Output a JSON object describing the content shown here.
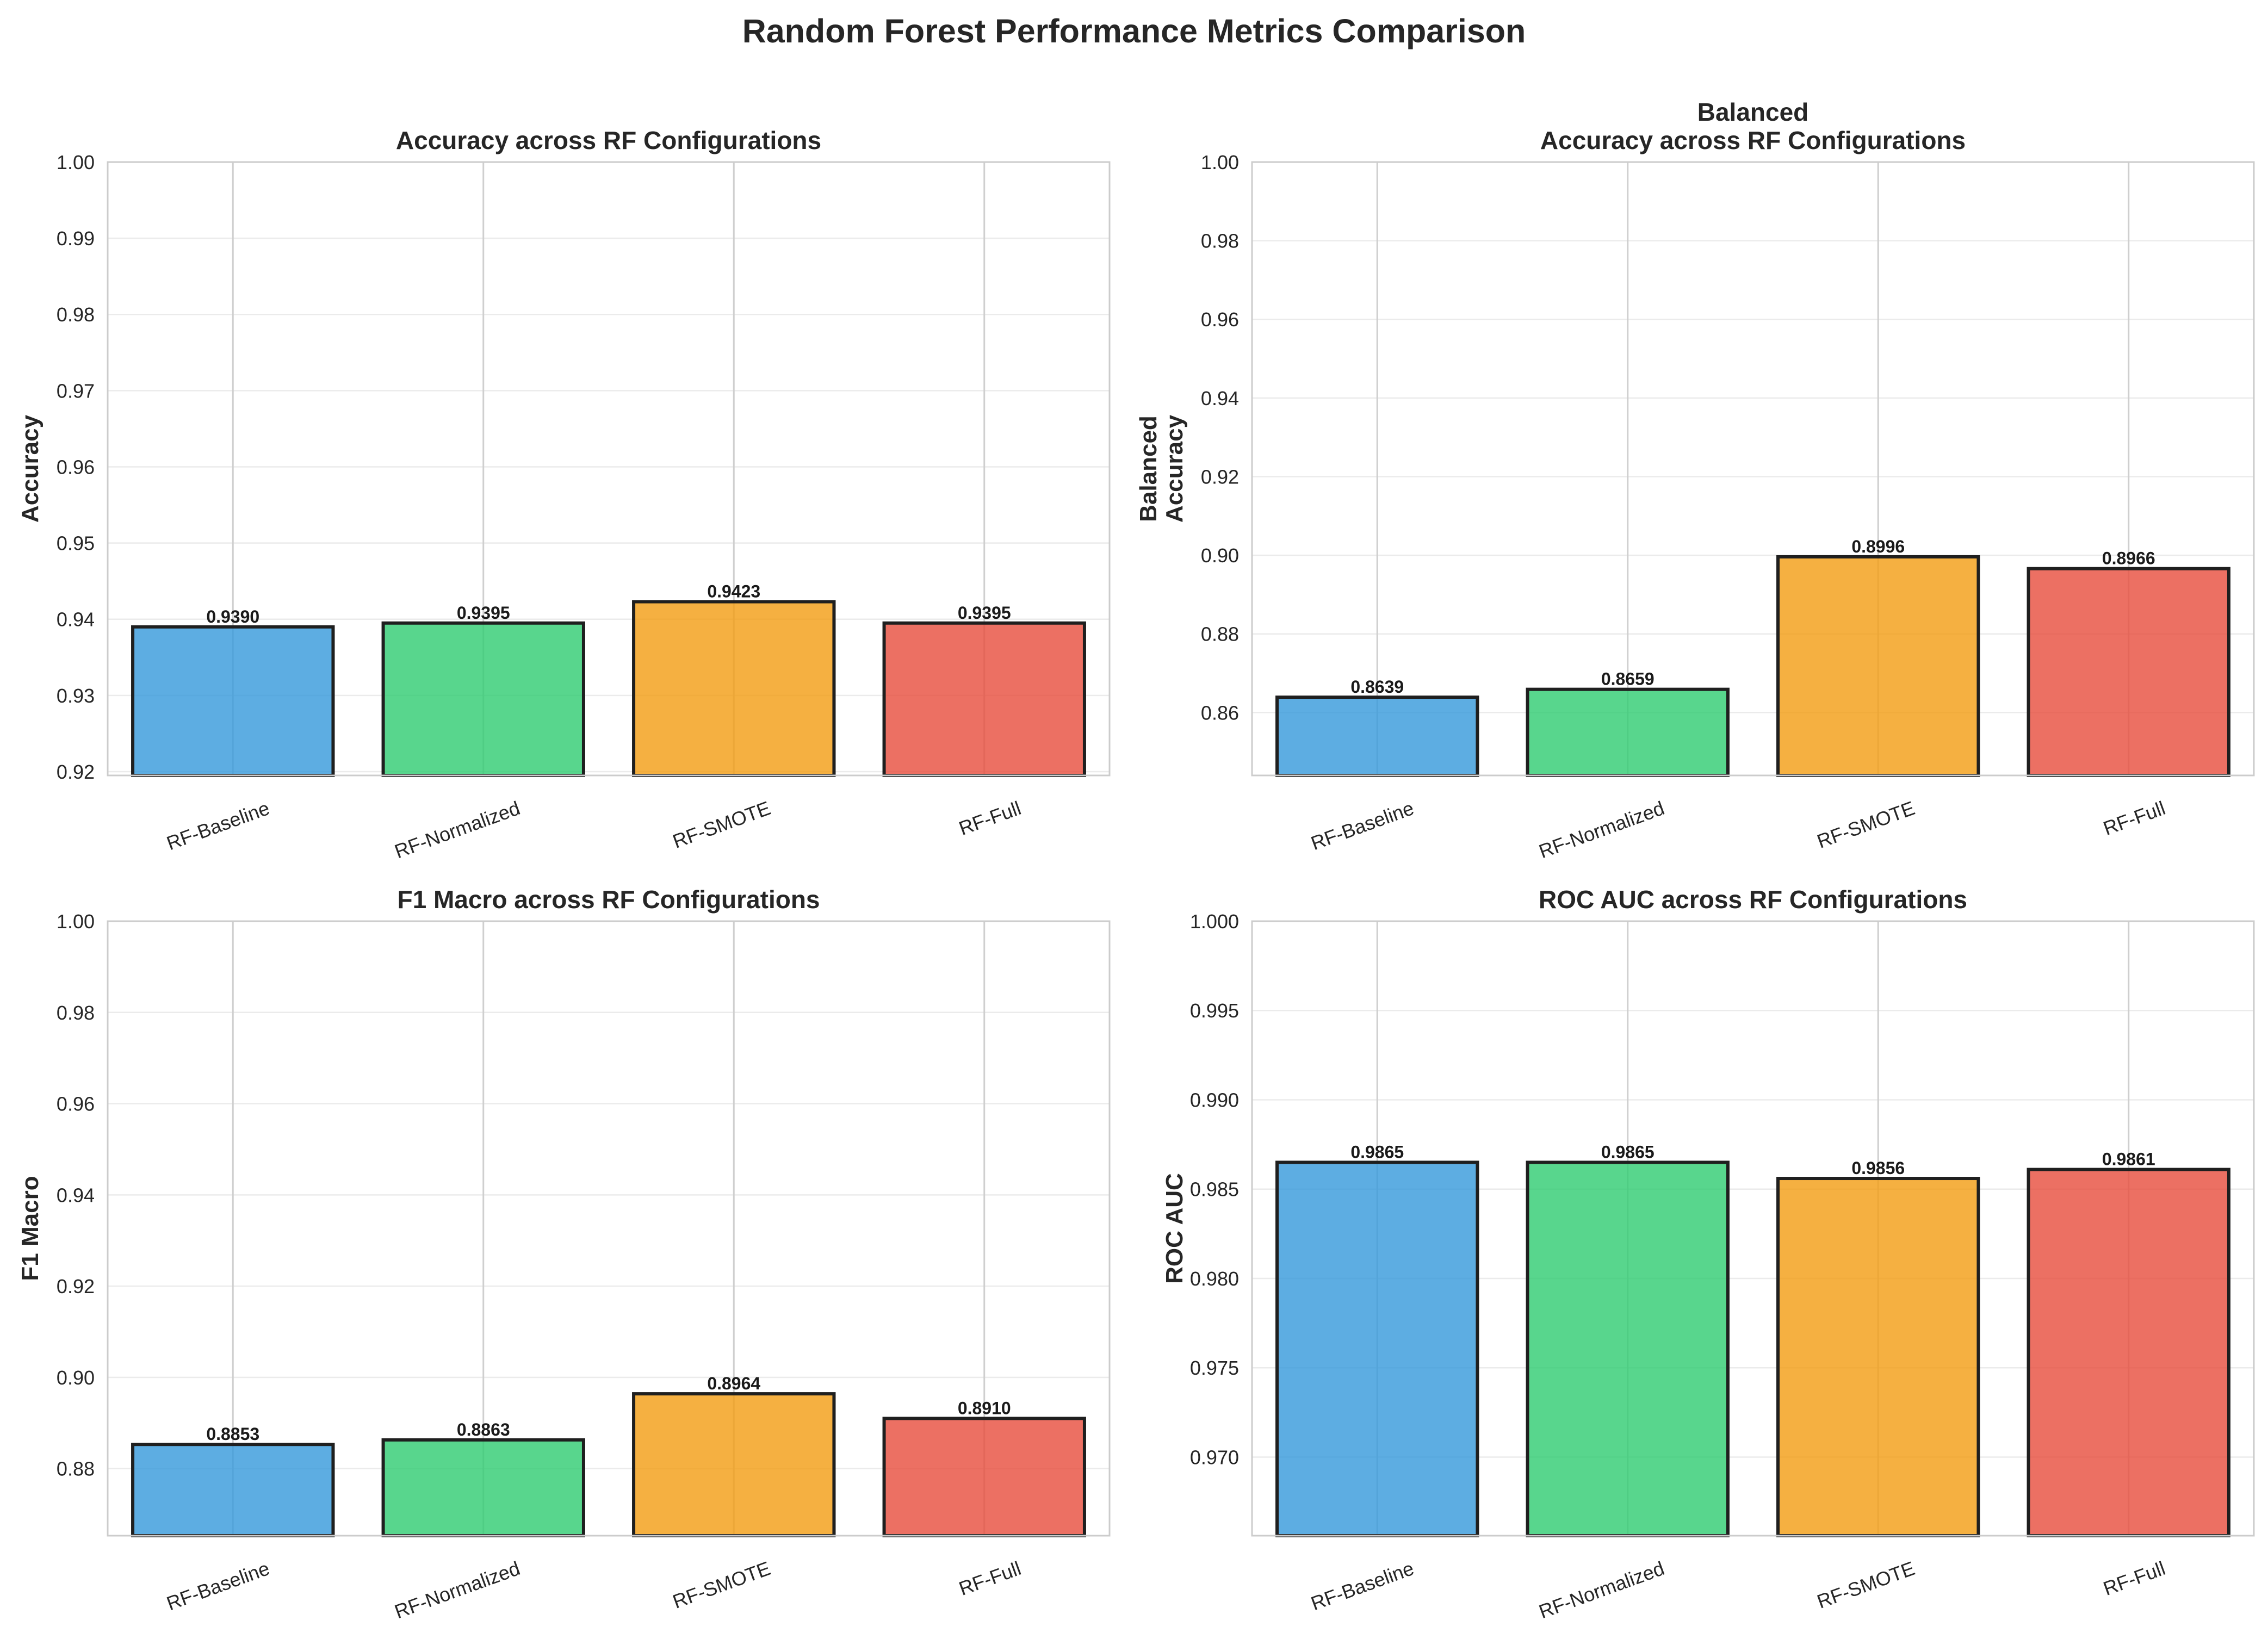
{
  "suptitle": "Random Forest Performance Metrics Comparison",
  "chart_data": [
    {
      "type": "bar",
      "title": "Accuracy across RF Configurations",
      "ylabel": "Accuracy",
      "xlabel": "",
      "categories": [
        "RF-Baseline",
        "RF-Normalized",
        "RF-SMOTE",
        "RF-Full"
      ],
      "values": [
        0.939,
        0.9395,
        0.9423,
        0.9395
      ],
      "value_labels": [
        "0.9390",
        "0.9395",
        "0.9423",
        "0.9395"
      ],
      "ylim": [
        0.9195,
        1.0
      ],
      "yticks": [
        0.92,
        0.93,
        0.94,
        0.95,
        0.96,
        0.97,
        0.98,
        0.99,
        1.0
      ],
      "ytick_labels": [
        "0.92",
        "0.93",
        "0.94",
        "0.95",
        "0.96",
        "0.97",
        "0.98",
        "0.99",
        "1.00"
      ],
      "grid": true,
      "colors": [
        "#3498db",
        "#2ecc71",
        "#f39c12",
        "#e74c3c"
      ]
    },
    {
      "type": "bar",
      "title": "Balanced\nAccuracy across RF Configurations",
      "ylabel": "Balanced\nAccuracy",
      "xlabel": "",
      "categories": [
        "RF-Baseline",
        "RF-Normalized",
        "RF-SMOTE",
        "RF-Full"
      ],
      "values": [
        0.8639,
        0.8659,
        0.8996,
        0.8966
      ],
      "value_labels": [
        "0.8639",
        "0.8659",
        "0.8996",
        "0.8966"
      ],
      "ylim": [
        0.844,
        1.0
      ],
      "yticks": [
        0.86,
        0.88,
        0.9,
        0.92,
        0.94,
        0.96,
        0.98,
        1.0
      ],
      "ytick_labels": [
        "0.86",
        "0.88",
        "0.90",
        "0.92",
        "0.94",
        "0.96",
        "0.98",
        "1.00"
      ],
      "grid": true,
      "colors": [
        "#3498db",
        "#2ecc71",
        "#f39c12",
        "#e74c3c"
      ]
    },
    {
      "type": "bar",
      "title": "F1 Macro across RF Configurations",
      "ylabel": "F1 Macro",
      "xlabel": "",
      "categories": [
        "RF-Baseline",
        "RF-Normalized",
        "RF-SMOTE",
        "RF-Full"
      ],
      "values": [
        0.8853,
        0.8863,
        0.8964,
        0.891
      ],
      "value_labels": [
        "0.8853",
        "0.8863",
        "0.8964",
        "0.8910"
      ],
      "ylim": [
        0.8653,
        1.0
      ],
      "yticks": [
        0.88,
        0.9,
        0.92,
        0.94,
        0.96,
        0.98,
        1.0
      ],
      "ytick_labels": [
        "0.88",
        "0.90",
        "0.92",
        "0.94",
        "0.96",
        "0.98",
        "1.00"
      ],
      "grid": true,
      "colors": [
        "#3498db",
        "#2ecc71",
        "#f39c12",
        "#e74c3c"
      ]
    },
    {
      "type": "bar",
      "title": "ROC AUC across RF Configurations",
      "ylabel": "ROC AUC",
      "xlabel": "",
      "categories": [
        "RF-Baseline",
        "RF-Normalized",
        "RF-SMOTE",
        "RF-Full"
      ],
      "values": [
        0.9865,
        0.9865,
        0.9856,
        0.9861
      ],
      "value_labels": [
        "0.9865",
        "0.9865",
        "0.9856",
        "0.9861"
      ],
      "ylim": [
        0.9656,
        1.0
      ],
      "yticks": [
        0.97,
        0.975,
        0.98,
        0.985,
        0.99,
        0.995,
        1.0
      ],
      "ytick_labels": [
        "0.970",
        "0.975",
        "0.980",
        "0.985",
        "0.990",
        "0.995",
        "1.000"
      ],
      "grid": true,
      "colors": [
        "#3498db",
        "#2ecc71",
        "#f39c12",
        "#e74c3c"
      ]
    }
  ]
}
